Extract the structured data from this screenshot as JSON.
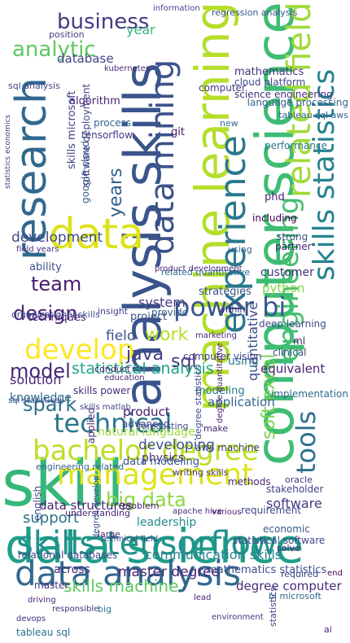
{
  "cloud": {
    "background": "#ffffff",
    "words": [
      {
        "text": "computer science",
        "color": "#3ebc74",
        "rotated": true
      },
      {
        "text": "machine learning",
        "color": "#b5de2b",
        "rotated": true
      },
      {
        "text": "analysis skills",
        "color": "#3a548c",
        "rotated": true
      },
      {
        "text": "skill",
        "color": "#35b779",
        "rotated": false
      },
      {
        "text": "data science",
        "color": "#1f9e89",
        "rotated": false
      },
      {
        "text": "data analysis",
        "color": "#31688e",
        "rotated": false
      },
      {
        "text": "skills tensorflow",
        "color": "#21918c",
        "rotated": false
      },
      {
        "text": "research",
        "color": "#31688e",
        "rotated": true
      },
      {
        "text": "data",
        "color": "#dde318",
        "rotated": false
      },
      {
        "text": "management",
        "color": "#dde318",
        "rotated": false
      },
      {
        "text": "bachelor degree",
        "color": "#bddf26",
        "rotated": false
      },
      {
        "text": "skills statistics",
        "color": "#26828e",
        "rotated": true
      },
      {
        "text": "experience",
        "color": "#2a788e",
        "rotated": true
      },
      {
        "text": "engineering",
        "color": "#44bf70",
        "rotated": true
      },
      {
        "text": "related field",
        "color": "#a0da39",
        "rotated": true
      },
      {
        "text": "tools",
        "color": "#2d708e",
        "rotated": true
      },
      {
        "text": "data mining",
        "color": "#3b528b",
        "rotated": true
      },
      {
        "text": "technical",
        "color": "#2a788e",
        "rotated": false
      },
      {
        "text": "power bi",
        "color": "#39568c",
        "rotated": false
      },
      {
        "text": "business",
        "color": "#443983",
        "rotated": false
      },
      {
        "text": "analytic",
        "color": "#5ec962",
        "rotated": false
      },
      {
        "text": "develop",
        "color": "#fde725",
        "rotated": false
      },
      {
        "text": "design",
        "color": "#482576",
        "rotated": false
      },
      {
        "text": "team",
        "color": "#481a6c",
        "rotated": false
      },
      {
        "text": "model",
        "color": "#482878",
        "rotated": false
      },
      {
        "text": "spark",
        "color": "#2c728e",
        "rotated": false
      },
      {
        "text": "big data",
        "color": "#90d743",
        "rotated": false
      },
      {
        "text": "java",
        "color": "#433e85",
        "rotated": false
      },
      {
        "text": "work",
        "color": "#b5de2b",
        "rotated": false
      },
      {
        "text": "sql",
        "color": "#472f7d",
        "rotated": false
      },
      {
        "text": "statistical analysis",
        "color": "#20a486",
        "rotated": false
      },
      {
        "text": "skills machine",
        "color": "#5ec962",
        "rotated": false
      },
      {
        "text": "master degree",
        "color": "#482475",
        "rotated": false
      },
      {
        "text": "communication skills",
        "color": "#26828e",
        "rotated": false
      },
      {
        "text": "degree computer",
        "color": "#472c7a",
        "rotated": false
      },
      {
        "text": "soft excel",
        "color": "#7ad151",
        "rotated": true
      },
      {
        "text": "quantitative",
        "color": "#3e4a89",
        "rotated": true
      },
      {
        "text": "database",
        "color": "#414487",
        "rotated": false
      },
      {
        "text": "year",
        "color": "#35b779",
        "rotated": false
      },
      {
        "text": "years",
        "color": "#34618d",
        "rotated": true
      },
      {
        "text": "mathematics",
        "color": "#46337f",
        "rotated": false
      },
      {
        "text": "development",
        "color": "#3e4989",
        "rotated": false
      },
      {
        "text": "system",
        "color": "#443a83",
        "rotated": false
      },
      {
        "text": "python",
        "color": "#86d549",
        "rotated": false
      },
      {
        "text": "product",
        "color": "#481c6e",
        "rotated": false
      },
      {
        "text": "advanced",
        "color": "#3f4788",
        "rotated": false
      },
      {
        "text": "solution",
        "color": "#482677",
        "rotated": false
      },
      {
        "text": "knowledge",
        "color": "#31688e",
        "rotated": false
      },
      {
        "text": "using",
        "color": "#29798e",
        "rotated": false
      },
      {
        "text": "equivalent",
        "color": "#482173",
        "rotated": false
      },
      {
        "text": "application",
        "color": "#33638d",
        "rotated": false
      },
      {
        "text": "software",
        "color": "#443983",
        "rotated": false
      },
      {
        "text": "support",
        "color": "#2c728e",
        "rotated": false
      },
      {
        "text": "leadership",
        "color": "#238a8d",
        "rotated": false
      },
      {
        "text": "across",
        "color": "#482878",
        "rotated": false
      },
      {
        "text": "developing",
        "color": "#3d4e8a",
        "rotated": false
      },
      {
        "text": "physics",
        "color": "#46327e",
        "rotated": false
      },
      {
        "text": "field",
        "color": "#3b528b",
        "rotated": false
      },
      {
        "text": "project",
        "color": "#3e4c8a",
        "rotated": false
      },
      {
        "text": "provide",
        "color": "#365d8d",
        "rotated": false
      },
      {
        "text": "data structures",
        "color": "#482475",
        "rotated": false
      },
      {
        "text": "relational databases",
        "color": "#3f4889",
        "rotated": false
      },
      {
        "text": "tableau sql",
        "color": "#2d718e",
        "rotated": false
      },
      {
        "text": "mathematics statistics",
        "color": "#3e4c8a",
        "rotated": false
      },
      {
        "text": "bi microsoft",
        "color": "#31688e",
        "rotated": false
      },
      {
        "text": "deep learning",
        "color": "#3e4a89",
        "rotated": false
      },
      {
        "text": "natural language",
        "color": "#9fda3a",
        "rotated": false
      },
      {
        "text": "computer vision",
        "color": "#424086",
        "rotated": false
      },
      {
        "text": "data modeling",
        "color": "#3a538b",
        "rotated": false
      },
      {
        "text": "writing skills",
        "color": "#453781",
        "rotated": false
      },
      {
        "text": "customer",
        "color": "#46307e",
        "rotated": false
      },
      {
        "text": "strategies",
        "color": "#3b528b",
        "rotated": false
      },
      {
        "text": "modeling",
        "color": "#2a788e",
        "rotated": false
      },
      {
        "text": "methods",
        "color": "#482878",
        "rotated": false
      },
      {
        "text": "requirement",
        "color": "#3f4788",
        "rotated": false
      },
      {
        "text": "statistical software",
        "color": "#3e4a89",
        "rotated": false
      },
      {
        "text": "apache hive",
        "color": "#472d7b",
        "rotated": false
      },
      {
        "text": "skills power",
        "color": "#472c7a",
        "rotated": false
      },
      {
        "text": "engineering related",
        "color": "#33638d",
        "rotated": false
      },
      {
        "text": "problem",
        "color": "#482677",
        "rotated": false
      },
      {
        "text": "technical field",
        "color": "#3e4c8a",
        "rotated": false
      },
      {
        "text": "responsible",
        "color": "#472c7a",
        "rotated": false
      },
      {
        "text": "environment",
        "color": "#46327e",
        "rotated": false
      },
      {
        "text": "ability",
        "color": "#3b528b",
        "rotated": false
      },
      {
        "text": "techniques",
        "color": "#482475",
        "rotated": false
      },
      {
        "text": "implementation",
        "color": "#2f6c8e",
        "rotated": false
      },
      {
        "text": "organizational skills",
        "color": "#3d4d8a",
        "rotated": false
      },
      {
        "text": "insight",
        "color": "#414487",
        "rotated": false
      },
      {
        "text": "position",
        "color": "#443983",
        "rotated": false
      },
      {
        "text": "algorithm",
        "color": "#482475",
        "rotated": false
      },
      {
        "text": "sql analysis",
        "color": "#404588",
        "rotated": false
      },
      {
        "text": "cloud platform",
        "color": "#3e4a89",
        "rotated": false
      },
      {
        "text": "regression analysis",
        "color": "#3a538b",
        "rotated": false
      },
      {
        "text": "language processing",
        "color": "#34618d",
        "rotated": false
      },
      {
        "text": "tableau sql aws",
        "color": "#33638d",
        "rotated": false
      },
      {
        "text": "performance",
        "color": "#29798e",
        "rotated": false
      },
      {
        "text": "git",
        "color": "#481467",
        "rotated": false
      },
      {
        "text": "phd",
        "color": "#482173",
        "rotated": false
      },
      {
        "text": "new",
        "color": "#2c728e",
        "rotated": false
      },
      {
        "text": "science engineering",
        "color": "#46327e",
        "rotated": false
      },
      {
        "text": "computer",
        "color": "#443983",
        "rotated": false
      },
      {
        "text": "including",
        "color": "#440154",
        "rotated": false
      },
      {
        "text": "partner",
        "color": "#482878",
        "rotated": false
      },
      {
        "text": "process",
        "color": "#31688e",
        "rotated": false
      },
      {
        "text": "google cloud",
        "color": "#38598c",
        "rotated": true
      },
      {
        "text": "tensorflow",
        "color": "#453882",
        "rotated": false
      },
      {
        "text": "software deployment",
        "color": "#3f4788",
        "rotated": true
      },
      {
        "text": "skills microsoft",
        "color": "#404588",
        "rotated": true
      },
      {
        "text": "master",
        "color": "#46337f",
        "rotated": false
      },
      {
        "text": "applied",
        "color": "#472c7a",
        "rotated": true
      },
      {
        "text": "make",
        "color": "#481d6f",
        "rotated": false
      },
      {
        "text": "understanding",
        "color": "#482475",
        "rotated": false
      },
      {
        "text": "large",
        "color": "#472f7d",
        "rotated": false
      },
      {
        "text": "conduct",
        "color": "#481f70",
        "rotated": false
      },
      {
        "text": "aws machine",
        "color": "#414487",
        "rotated": false
      },
      {
        "text": "clinical",
        "color": "#3e4a89",
        "rotated": false
      },
      {
        "text": "ml",
        "color": "#482173",
        "rotated": false
      },
      {
        "text": "within",
        "color": "#46327e",
        "rotated": false
      },
      {
        "text": "strong",
        "color": "#3b528b",
        "rotated": false
      },
      {
        "text": "using",
        "color": "#34618d",
        "rotated": false
      },
      {
        "text": "forecasting",
        "color": "#3e4c8a",
        "rotated": false
      },
      {
        "text": "marketing",
        "color": "#482878",
        "rotated": false
      },
      {
        "text": "related quantitative",
        "color": "#2f6c8e",
        "rotated": false
      },
      {
        "text": "product development",
        "color": "#472c7a",
        "rotated": false
      },
      {
        "text": "economic",
        "color": "#38598c",
        "rotated": false
      },
      {
        "text": "oracle",
        "color": "#46337f",
        "rotated": false
      },
      {
        "text": "stakeholder",
        "color": "#414487",
        "rotated": false
      },
      {
        "text": "solve",
        "color": "#482677",
        "rotated": false
      },
      {
        "text": "various",
        "color": "#481c6e",
        "rotated": false
      },
      {
        "text": "required",
        "color": "#3e4989",
        "rotated": false
      },
      {
        "text": "driving",
        "color": "#482475",
        "rotated": false
      },
      {
        "text": "devops",
        "color": "#46307e",
        "rotated": false
      },
      {
        "text": "english",
        "color": "#3f4788",
        "rotated": true
      },
      {
        "text": "degree develop",
        "color": "#3b528b",
        "rotated": true
      },
      {
        "text": "ai",
        "color": "#482173",
        "rotated": false
      },
      {
        "text": "statistics",
        "color": "#414487",
        "rotated": true
      },
      {
        "text": "big",
        "color": "#2d718e",
        "rotated": false
      },
      {
        "text": "sql statistical",
        "color": "#3b528b",
        "rotated": false
      },
      {
        "text": "education",
        "color": "#482878",
        "rotated": false
      },
      {
        "text": "skills matlab",
        "color": "#404588",
        "rotated": false
      },
      {
        "text": "degree statistics",
        "color": "#3e4c8a",
        "rotated": true
      },
      {
        "text": "information",
        "color": "#3f4889",
        "rotated": false
      },
      {
        "text": "kubernetes",
        "color": "#472d7b",
        "rotated": false
      },
      {
        "text": "statistics economics",
        "color": "#453781",
        "rotated": true
      },
      {
        "text": "field years",
        "color": "#46307e",
        "rotated": false
      },
      {
        "text": "degree quantitative",
        "color": "#482475",
        "rotated": true
      },
      {
        "text": "end",
        "color": "#440154",
        "rotated": false
      },
      {
        "text": "lead",
        "color": "#481f70",
        "rotated": false
      }
    ]
  }
}
